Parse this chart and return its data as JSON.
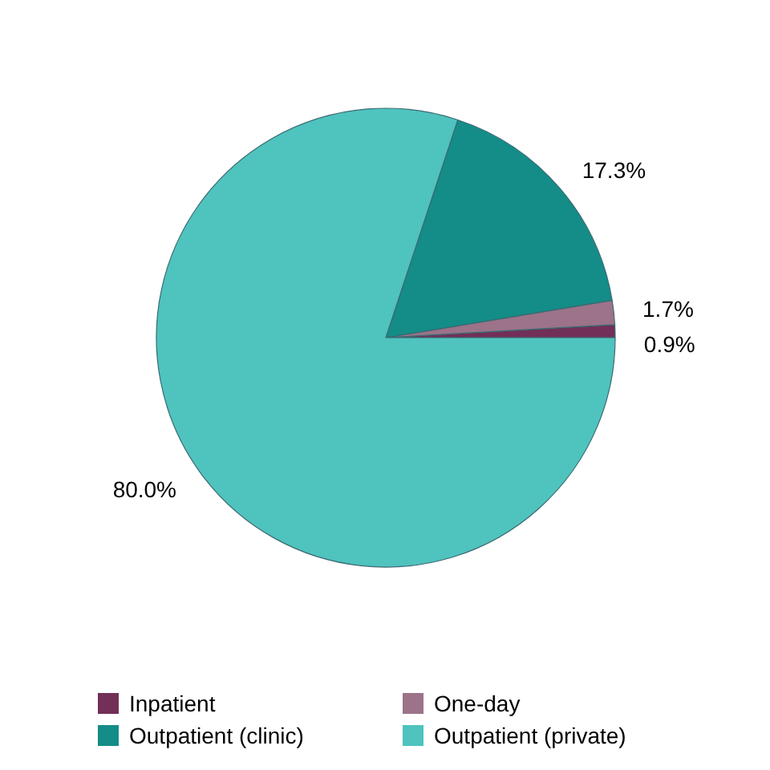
{
  "chart_data": {
    "type": "pie",
    "categories": [
      "Inpatient",
      "One-day",
      "Outpatient (clinic)",
      "Outpatient (private)"
    ],
    "values": [
      0.9,
      1.7,
      17.3,
      80.0
    ],
    "colors": [
      "#722f57",
      "#9c7389",
      "#148c88",
      "#4fc3be"
    ],
    "value_labels": [
      "0.9%",
      "1.7%",
      "17.3%",
      "80.0%"
    ],
    "legend": "bottom"
  }
}
